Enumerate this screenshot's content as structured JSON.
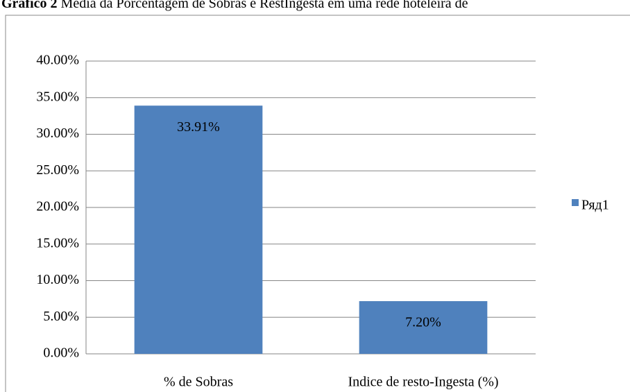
{
  "chart_data": {
    "type": "bar",
    "title_label": "Gráfico 2",
    "title": "Média da Porcentagem de Sobras e RestIngesta em uma rede hoteleira de",
    "categories": [
      "% de Sobras",
      "Indice de resto-Ingesta (%)"
    ],
    "series": [
      {
        "name": "Ряд1",
        "color": "#4f81bd",
        "values": [
          33.91,
          7.2
        ],
        "value_labels": [
          "33.91%",
          "7.20%"
        ]
      }
    ],
    "ylim": [
      0,
      40
    ],
    "yticks": [
      {
        "value": 0,
        "label": "0.00%"
      },
      {
        "value": 5,
        "label": "5.00%"
      },
      {
        "value": 10,
        "label": "10.00%"
      },
      {
        "value": 15,
        "label": "15.00%"
      },
      {
        "value": 20,
        "label": "20.00%"
      },
      {
        "value": 25,
        "label": "25.00%"
      },
      {
        "value": 30,
        "label": "30.00%"
      },
      {
        "value": 35,
        "label": "35.00%"
      },
      {
        "value": 40,
        "label": "40.00%"
      }
    ],
    "grid": true,
    "legend": "right"
  }
}
